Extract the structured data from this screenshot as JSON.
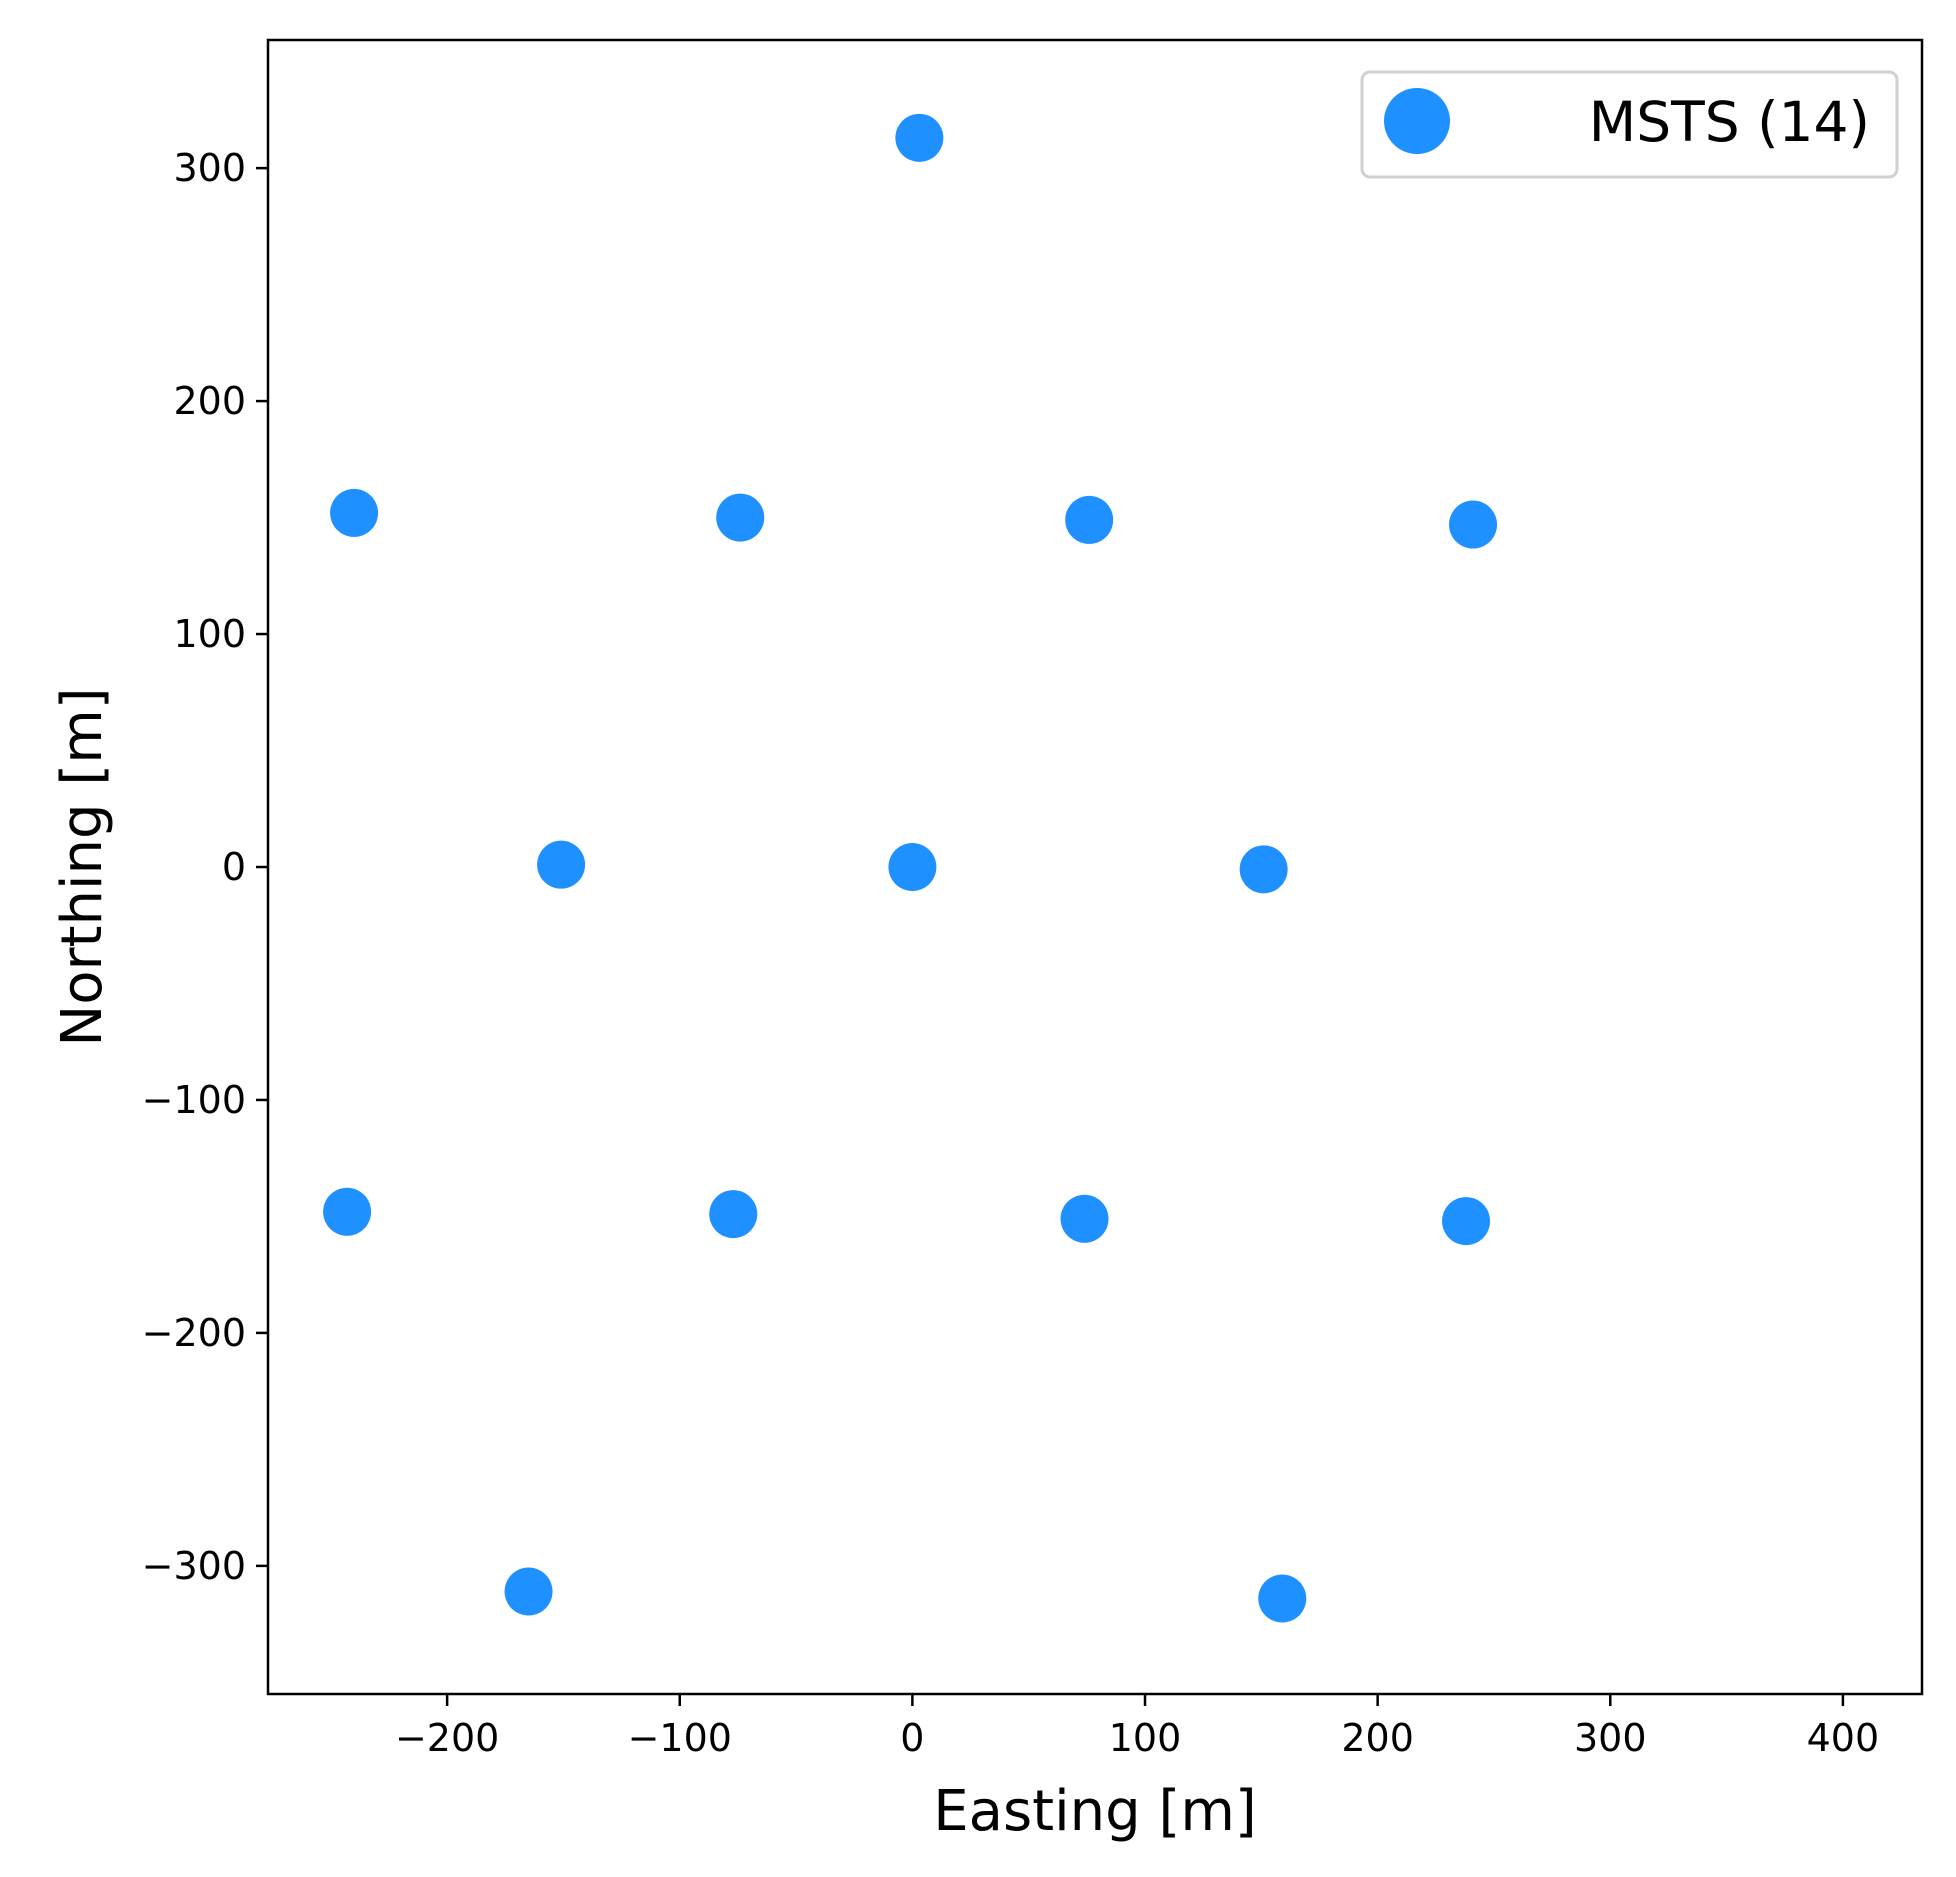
{
  "chart_data": {
    "type": "scatter",
    "xlabel": "Easting [m]",
    "ylabel": "Northing [m]",
    "xlim": [
      -277,
      434
    ],
    "ylim": [
      -355,
      355
    ],
    "xticks": [
      -200,
      -100,
      0,
      100,
      200,
      300,
      400
    ],
    "yticks": [
      -300,
      -200,
      -100,
      0,
      100,
      200,
      300
    ],
    "xtick_labels": [
      "−200",
      "−100",
      "0",
      "100",
      "200",
      "300",
      "400"
    ],
    "ytick_labels": [
      "−300",
      "−200",
      "−100",
      "0",
      "100",
      "200",
      "300"
    ],
    "grid": false,
    "legend_position": "top-right",
    "series": [
      {
        "name": "MSTS (14)",
        "color": "#1e90ff",
        "x": [
          3,
          -240,
          -74,
          76,
          241,
          -151,
          0,
          151,
          -243,
          -77,
          74,
          238,
          -165,
          159
        ],
        "y": [
          313,
          152,
          150,
          149,
          147,
          1,
          0,
          -1,
          -148,
          -149,
          -151,
          -152,
          -311,
          -314
        ]
      }
    ]
  }
}
